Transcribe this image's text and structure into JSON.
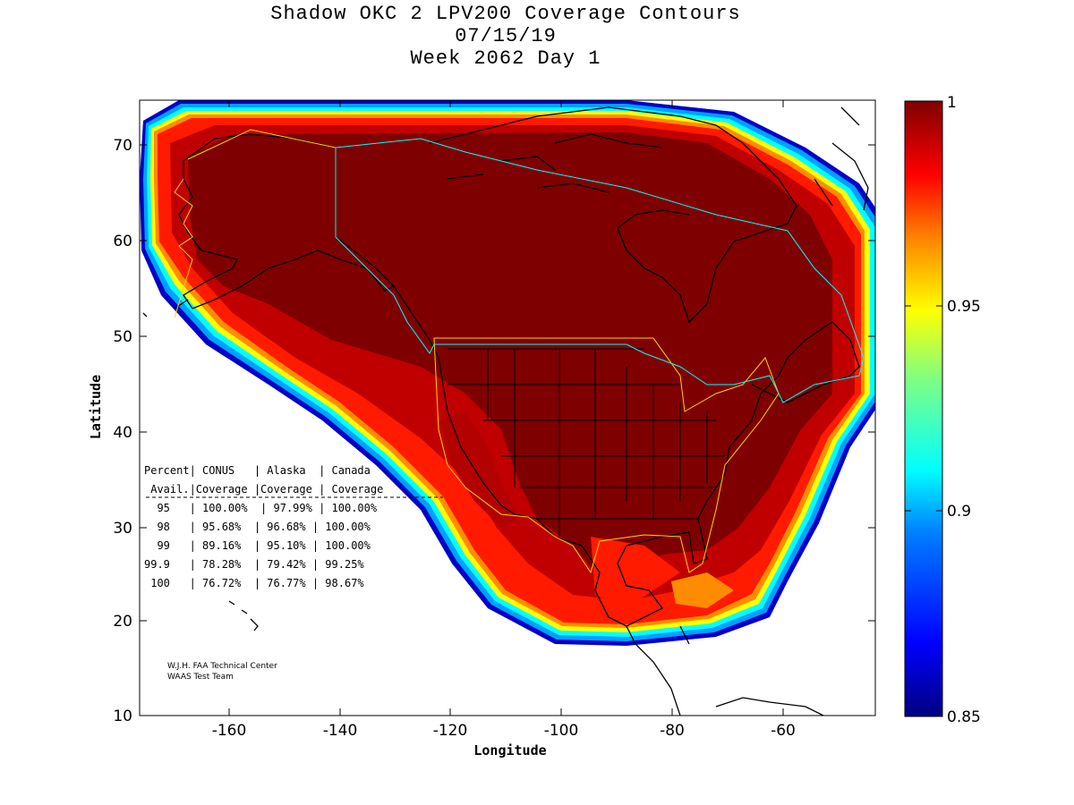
{
  "title": {
    "line1": "Shadow OKC 2 LPV200 Coverage Contours",
    "line2": "07/15/19",
    "line3": "Week 2062 Day 1"
  },
  "axes": {
    "xlabel": "Longitude",
    "ylabel": "Latitude",
    "xticks": [
      "-160",
      "-140",
      "-120",
      "-100",
      "-80",
      "-60"
    ],
    "yticks": [
      "70",
      "60",
      "50",
      "40",
      "30",
      "20",
      "10"
    ]
  },
  "colorbar": {
    "ticks": [
      "1",
      "0.95",
      "0.9",
      "0.85"
    ],
    "colors": [
      "#00007f",
      "#0000ff",
      "#0080ff",
      "#00ffff",
      "#80ff80",
      "#ffff00",
      "#ff8000",
      "#ff0000",
      "#7f0000"
    ]
  },
  "table": {
    "header1": "Percent| CONUS   | Alaska  | Canada",
    "header2": " Avail.|Coverage |Coverage | Coverage",
    "rows": [
      "  95   | 100.00%  | 97.99% | 100.00%",
      "  98   | 95.68%  | 96.68% | 100.00%",
      "  99   | 89.16%  | 95.10% | 100.00%",
      "99.9   | 78.28%  | 79.42% | 99.25%",
      " 100   | 76.72%  | 76.77% | 98.67%"
    ]
  },
  "credit": {
    "line1": "W.J.H. FAA Technical Center",
    "line2": "WAAS Test Team"
  }
}
